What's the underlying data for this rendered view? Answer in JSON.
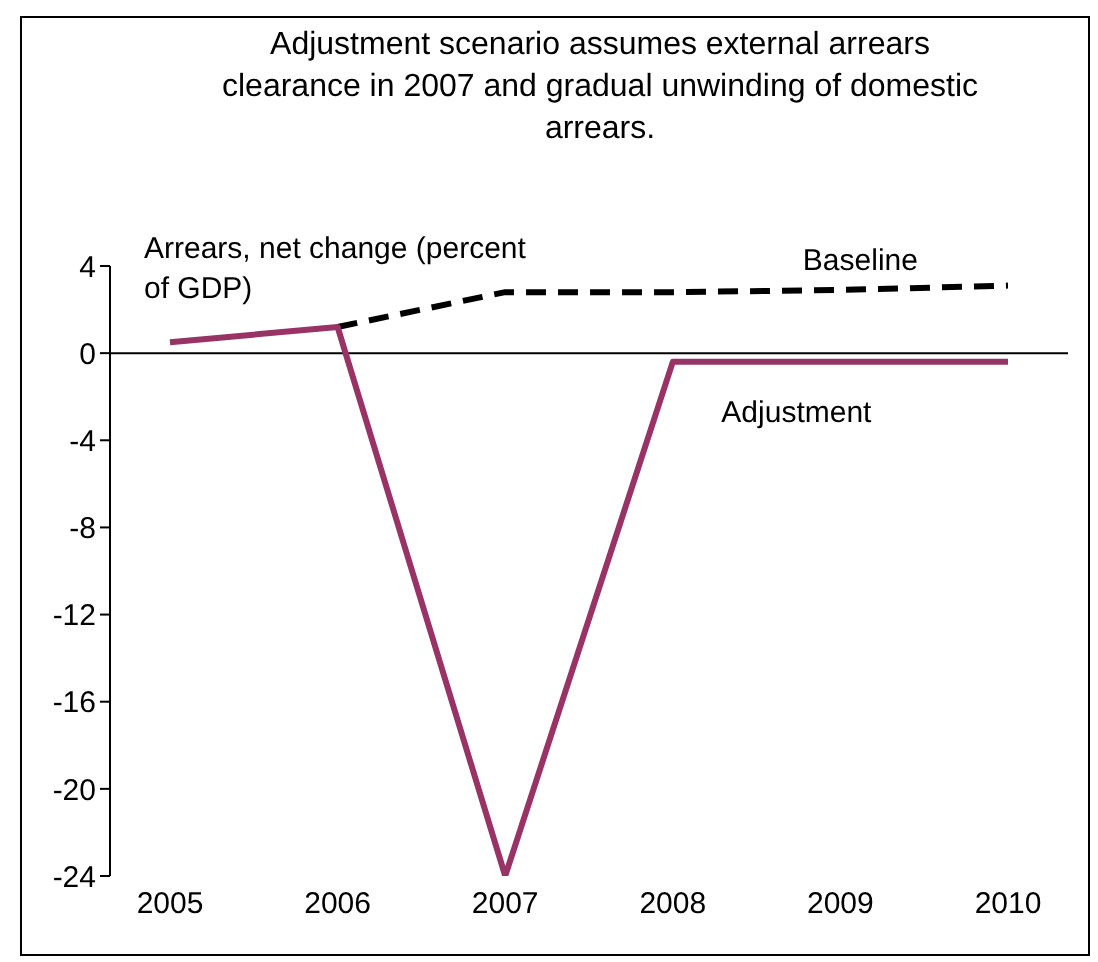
{
  "chart_data": {
    "type": "line",
    "title": "Adjustment scenario assumes external arrears clearance in 2007 and gradual unwinding of domestic arrears.",
    "ylabel": "Arrears, net change (percent of GDP)",
    "categories": [
      "2005",
      "2006",
      "2007",
      "2008",
      "2009",
      "2010"
    ],
    "series": [
      {
        "name": "Baseline",
        "color": "#000000",
        "line_style": "dashed",
        "values": [
          null,
          1.2,
          2.8,
          2.8,
          2.9,
          3.1
        ]
      },
      {
        "name": "Adjustment",
        "color": "#993366",
        "line_style": "solid",
        "values": [
          0.5,
          1.2,
          -24,
          -0.4,
          -0.4,
          -0.4
        ]
      }
    ],
    "ylim": [
      -24,
      4
    ],
    "yticks": [
      4,
      0,
      -4,
      -8,
      -12,
      -16,
      -20,
      -24
    ],
    "ref_lines": [
      {
        "axis": "y",
        "value": 0,
        "color": "#000000"
      }
    ],
    "grid": false,
    "legend": false,
    "marker": "none"
  }
}
